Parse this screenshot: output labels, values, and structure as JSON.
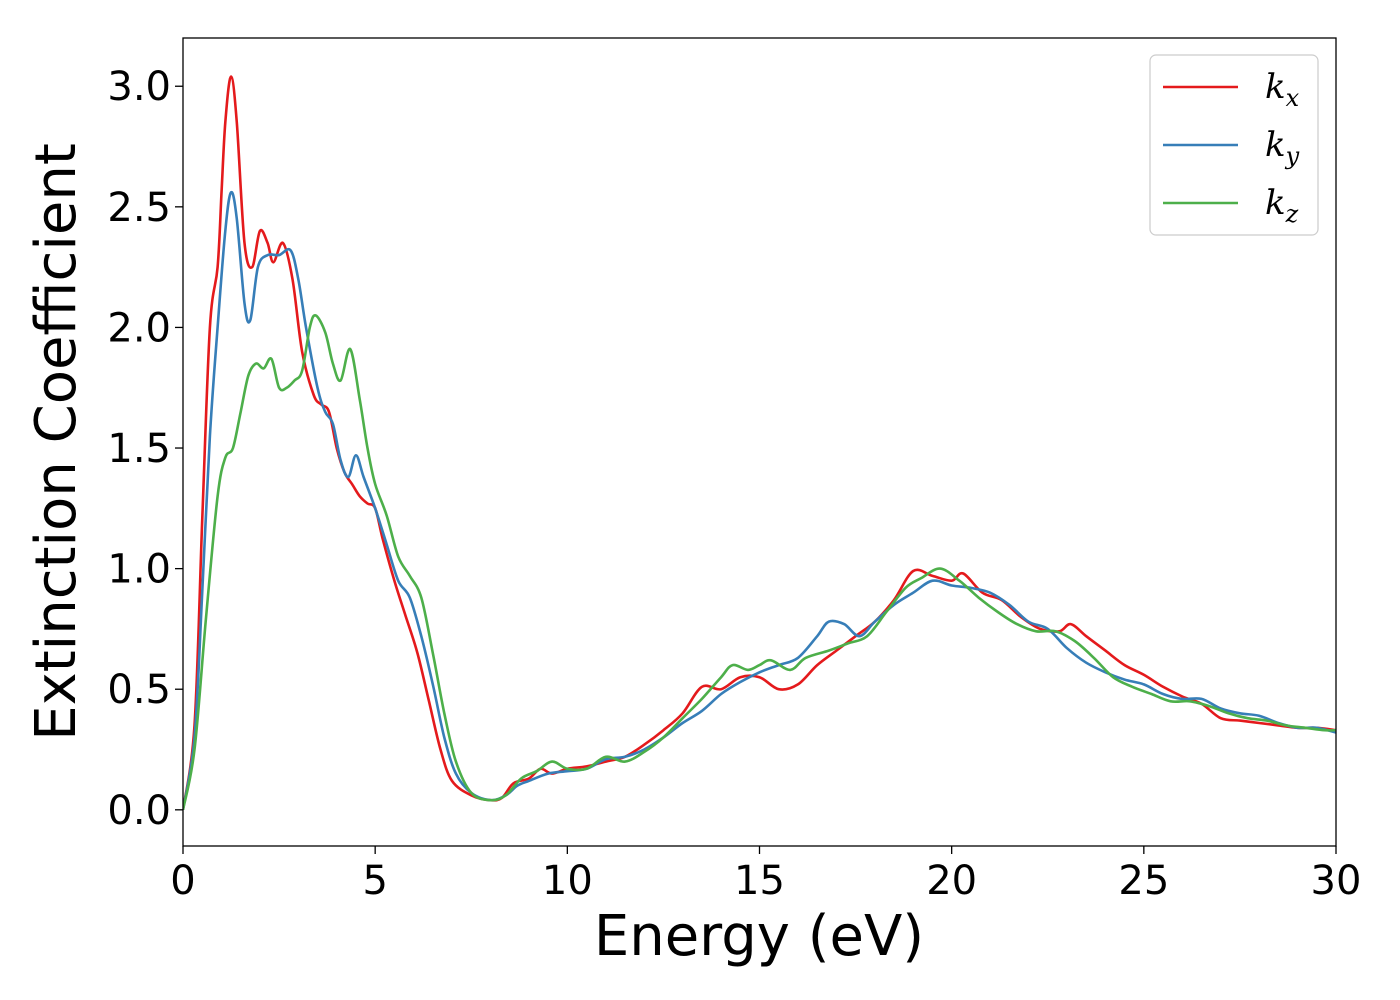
{
  "chart_data": {
    "type": "line",
    "xlabel": "Energy (eV)",
    "ylabel": "Extinction Coefficient",
    "xlim": [
      0,
      30
    ],
    "ylim": [
      -0.15,
      3.2
    ],
    "x_ticks": [
      "0",
      "5",
      "10",
      "15",
      "20",
      "25",
      "30"
    ],
    "y_ticks": [
      "0.0",
      "0.5",
      "1.0",
      "1.5",
      "2.0",
      "2.5",
      "3.0"
    ],
    "grid": false,
    "legend_position": "top-right",
    "series": [
      {
        "name": "k_x",
        "legend_main": "k",
        "legend_sub": "x",
        "color": "#e41a1c",
        "points": [
          [
            0,
            0.0
          ],
          [
            0.3,
            0.35
          ],
          [
            0.5,
            1.2
          ],
          [
            0.7,
            2.0
          ],
          [
            0.9,
            2.25
          ],
          [
            1.0,
            2.55
          ],
          [
            1.1,
            2.85
          ],
          [
            1.25,
            3.04
          ],
          [
            1.4,
            2.85
          ],
          [
            1.6,
            2.35
          ],
          [
            1.8,
            2.25
          ],
          [
            2.0,
            2.4
          ],
          [
            2.2,
            2.35
          ],
          [
            2.35,
            2.27
          ],
          [
            2.6,
            2.35
          ],
          [
            2.85,
            2.2
          ],
          [
            3.1,
            1.9
          ],
          [
            3.4,
            1.72
          ],
          [
            3.6,
            1.68
          ],
          [
            3.8,
            1.65
          ],
          [
            4.0,
            1.5
          ],
          [
            4.2,
            1.4
          ],
          [
            4.4,
            1.35
          ],
          [
            4.6,
            1.3
          ],
          [
            4.8,
            1.27
          ],
          [
            5.0,
            1.25
          ],
          [
            5.2,
            1.12
          ],
          [
            5.5,
            0.95
          ],
          [
            5.8,
            0.8
          ],
          [
            6.1,
            0.65
          ],
          [
            6.4,
            0.45
          ],
          [
            6.7,
            0.25
          ],
          [
            7.0,
            0.12
          ],
          [
            7.5,
            0.06
          ],
          [
            8.0,
            0.04
          ],
          [
            8.3,
            0.05
          ],
          [
            8.6,
            0.11
          ],
          [
            9.0,
            0.13
          ],
          [
            9.3,
            0.17
          ],
          [
            9.6,
            0.15
          ],
          [
            10.0,
            0.17
          ],
          [
            10.5,
            0.18
          ],
          [
            11.0,
            0.2
          ],
          [
            11.5,
            0.22
          ],
          [
            12.0,
            0.27
          ],
          [
            12.5,
            0.33
          ],
          [
            13.0,
            0.4
          ],
          [
            13.5,
            0.51
          ],
          [
            14.0,
            0.5
          ],
          [
            14.5,
            0.55
          ],
          [
            15.0,
            0.55
          ],
          [
            15.5,
            0.5
          ],
          [
            16.0,
            0.52
          ],
          [
            16.5,
            0.6
          ],
          [
            17.0,
            0.66
          ],
          [
            17.5,
            0.72
          ],
          [
            18.0,
            0.78
          ],
          [
            18.5,
            0.87
          ],
          [
            19.0,
            0.99
          ],
          [
            19.5,
            0.97
          ],
          [
            20.0,
            0.95
          ],
          [
            20.3,
            0.98
          ],
          [
            20.8,
            0.9
          ],
          [
            21.3,
            0.87
          ],
          [
            21.8,
            0.8
          ],
          [
            22.3,
            0.75
          ],
          [
            22.8,
            0.74
          ],
          [
            23.1,
            0.77
          ],
          [
            23.5,
            0.72
          ],
          [
            24.0,
            0.66
          ],
          [
            24.5,
            0.6
          ],
          [
            25.0,
            0.56
          ],
          [
            25.5,
            0.51
          ],
          [
            26.0,
            0.47
          ],
          [
            26.5,
            0.44
          ],
          [
            27.0,
            0.38
          ],
          [
            27.5,
            0.37
          ],
          [
            28.0,
            0.36
          ],
          [
            28.5,
            0.35
          ],
          [
            29.0,
            0.34
          ],
          [
            29.5,
            0.34
          ],
          [
            30.0,
            0.33
          ]
        ]
      },
      {
        "name": "k_y",
        "legend_main": "k",
        "legend_sub": "y",
        "color": "#377eb8",
        "points": [
          [
            0,
            0.0
          ],
          [
            0.3,
            0.3
          ],
          [
            0.5,
            0.9
          ],
          [
            0.7,
            1.55
          ],
          [
            0.9,
            2.0
          ],
          [
            1.1,
            2.4
          ],
          [
            1.25,
            2.56
          ],
          [
            1.4,
            2.45
          ],
          [
            1.6,
            2.1
          ],
          [
            1.75,
            2.03
          ],
          [
            1.95,
            2.25
          ],
          [
            2.2,
            2.3
          ],
          [
            2.5,
            2.3
          ],
          [
            2.8,
            2.32
          ],
          [
            3.0,
            2.2
          ],
          [
            3.2,
            2.0
          ],
          [
            3.5,
            1.75
          ],
          [
            3.7,
            1.65
          ],
          [
            3.9,
            1.6
          ],
          [
            4.1,
            1.45
          ],
          [
            4.3,
            1.38
          ],
          [
            4.5,
            1.47
          ],
          [
            4.7,
            1.38
          ],
          [
            5.0,
            1.25
          ],
          [
            5.3,
            1.1
          ],
          [
            5.6,
            0.95
          ],
          [
            5.9,
            0.88
          ],
          [
            6.2,
            0.72
          ],
          [
            6.5,
            0.52
          ],
          [
            6.8,
            0.3
          ],
          [
            7.1,
            0.15
          ],
          [
            7.5,
            0.07
          ],
          [
            8.0,
            0.04
          ],
          [
            8.4,
            0.06
          ],
          [
            8.7,
            0.1
          ],
          [
            9.0,
            0.12
          ],
          [
            9.5,
            0.15
          ],
          [
            10.0,
            0.16
          ],
          [
            10.5,
            0.17
          ],
          [
            11.0,
            0.21
          ],
          [
            11.5,
            0.22
          ],
          [
            12.0,
            0.25
          ],
          [
            12.5,
            0.3
          ],
          [
            13.0,
            0.36
          ],
          [
            13.5,
            0.41
          ],
          [
            14.0,
            0.48
          ],
          [
            14.5,
            0.53
          ],
          [
            15.0,
            0.57
          ],
          [
            15.5,
            0.6
          ],
          [
            16.0,
            0.63
          ],
          [
            16.5,
            0.72
          ],
          [
            16.8,
            0.78
          ],
          [
            17.2,
            0.77
          ],
          [
            17.6,
            0.72
          ],
          [
            18.0,
            0.78
          ],
          [
            18.5,
            0.85
          ],
          [
            19.0,
            0.9
          ],
          [
            19.5,
            0.95
          ],
          [
            20.0,
            0.93
          ],
          [
            20.5,
            0.92
          ],
          [
            21.0,
            0.9
          ],
          [
            21.5,
            0.85
          ],
          [
            22.0,
            0.78
          ],
          [
            22.5,
            0.75
          ],
          [
            23.0,
            0.67
          ],
          [
            23.5,
            0.61
          ],
          [
            24.0,
            0.57
          ],
          [
            24.5,
            0.54
          ],
          [
            25.0,
            0.52
          ],
          [
            25.5,
            0.48
          ],
          [
            26.0,
            0.46
          ],
          [
            26.5,
            0.46
          ],
          [
            27.0,
            0.42
          ],
          [
            27.5,
            0.4
          ],
          [
            28.0,
            0.39
          ],
          [
            28.5,
            0.36
          ],
          [
            29.0,
            0.34
          ],
          [
            29.5,
            0.34
          ],
          [
            30.0,
            0.32
          ]
        ]
      },
      {
        "name": "k_z",
        "legend_main": "k",
        "legend_sub": "z",
        "color": "#4daf4a",
        "points": [
          [
            0,
            0.0
          ],
          [
            0.3,
            0.25
          ],
          [
            0.6,
            0.8
          ],
          [
            0.9,
            1.3
          ],
          [
            1.1,
            1.46
          ],
          [
            1.3,
            1.5
          ],
          [
            1.5,
            1.65
          ],
          [
            1.7,
            1.8
          ],
          [
            1.9,
            1.85
          ],
          [
            2.1,
            1.83
          ],
          [
            2.3,
            1.87
          ],
          [
            2.5,
            1.75
          ],
          [
            2.7,
            1.75
          ],
          [
            2.9,
            1.78
          ],
          [
            3.1,
            1.82
          ],
          [
            3.3,
            2.0
          ],
          [
            3.45,
            2.05
          ],
          [
            3.7,
            1.98
          ],
          [
            3.9,
            1.85
          ],
          [
            4.1,
            1.78
          ],
          [
            4.35,
            1.91
          ],
          [
            4.6,
            1.7
          ],
          [
            4.8,
            1.5
          ],
          [
            5.0,
            1.35
          ],
          [
            5.3,
            1.22
          ],
          [
            5.6,
            1.05
          ],
          [
            5.9,
            0.97
          ],
          [
            6.2,
            0.88
          ],
          [
            6.5,
            0.65
          ],
          [
            6.8,
            0.4
          ],
          [
            7.1,
            0.2
          ],
          [
            7.5,
            0.07
          ],
          [
            8.0,
            0.04
          ],
          [
            8.4,
            0.06
          ],
          [
            8.8,
            0.13
          ],
          [
            9.2,
            0.16
          ],
          [
            9.6,
            0.2
          ],
          [
            10.0,
            0.17
          ],
          [
            10.5,
            0.17
          ],
          [
            11.0,
            0.22
          ],
          [
            11.5,
            0.2
          ],
          [
            12.0,
            0.24
          ],
          [
            12.5,
            0.3
          ],
          [
            13.0,
            0.38
          ],
          [
            13.5,
            0.46
          ],
          [
            14.0,
            0.55
          ],
          [
            14.3,
            0.6
          ],
          [
            14.7,
            0.58
          ],
          [
            15.0,
            0.6
          ],
          [
            15.3,
            0.62
          ],
          [
            15.8,
            0.58
          ],
          [
            16.2,
            0.63
          ],
          [
            16.8,
            0.66
          ],
          [
            17.3,
            0.69
          ],
          [
            17.8,
            0.72
          ],
          [
            18.3,
            0.82
          ],
          [
            18.8,
            0.92
          ],
          [
            19.2,
            0.96
          ],
          [
            19.7,
            1.0
          ],
          [
            20.2,
            0.95
          ],
          [
            20.7,
            0.88
          ],
          [
            21.2,
            0.82
          ],
          [
            21.7,
            0.77
          ],
          [
            22.2,
            0.74
          ],
          [
            22.7,
            0.74
          ],
          [
            23.2,
            0.7
          ],
          [
            23.7,
            0.63
          ],
          [
            24.2,
            0.55
          ],
          [
            24.7,
            0.51
          ],
          [
            25.2,
            0.48
          ],
          [
            25.7,
            0.45
          ],
          [
            26.2,
            0.45
          ],
          [
            26.7,
            0.43
          ],
          [
            27.2,
            0.4
          ],
          [
            27.7,
            0.38
          ],
          [
            28.2,
            0.37
          ],
          [
            28.7,
            0.35
          ],
          [
            29.2,
            0.34
          ],
          [
            29.7,
            0.33
          ],
          [
            30.0,
            0.33
          ]
        ]
      }
    ]
  }
}
